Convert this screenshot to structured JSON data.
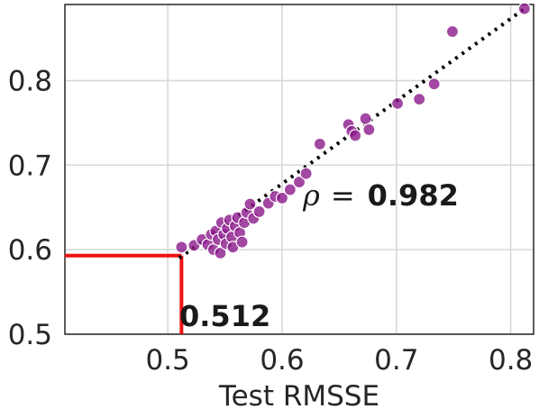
{
  "chart_data": {
    "type": "scatter",
    "xlabel": "Test RMSSE",
    "ylabel": "",
    "xlim": [
      0.41,
      0.82
    ],
    "ylim": [
      0.5,
      0.89
    ],
    "xticks": [
      "0.5",
      "0.6",
      "0.7",
      "0.8"
    ],
    "yticks": [
      "0.5",
      "0.6",
      "0.7",
      "0.8"
    ],
    "grid": true,
    "point_color": "#8b1a8b",
    "trend_line": {
      "style": "dotted",
      "color": "#000000",
      "x": [
        0.51,
        0.812
      ],
      "y": [
        0.59,
        0.885
      ]
    },
    "marker_line": {
      "color": "#ee1111",
      "x": 0.512,
      "y": 0.593
    },
    "annotations": {
      "rho_symbol": "ρ",
      "rho_equals": "=",
      "rho_value": "0.982",
      "min_label": "0.512"
    },
    "points": [
      {
        "x": 0.512,
        "y": 0.603
      },
      {
        "x": 0.523,
        "y": 0.605
      },
      {
        "x": 0.53,
        "y": 0.612
      },
      {
        "x": 0.535,
        "y": 0.606
      },
      {
        "x": 0.538,
        "y": 0.618
      },
      {
        "x": 0.54,
        "y": 0.6
      },
      {
        "x": 0.542,
        "y": 0.622
      },
      {
        "x": 0.544,
        "y": 0.612
      },
      {
        "x": 0.546,
        "y": 0.596
      },
      {
        "x": 0.547,
        "y": 0.632
      },
      {
        "x": 0.549,
        "y": 0.618
      },
      {
        "x": 0.551,
        "y": 0.607
      },
      {
        "x": 0.552,
        "y": 0.625
      },
      {
        "x": 0.554,
        "y": 0.635
      },
      {
        "x": 0.556,
        "y": 0.615
      },
      {
        "x": 0.557,
        "y": 0.603
      },
      {
        "x": 0.559,
        "y": 0.628
      },
      {
        "x": 0.561,
        "y": 0.638
      },
      {
        "x": 0.563,
        "y": 0.62
      },
      {
        "x": 0.565,
        "y": 0.609
      },
      {
        "x": 0.567,
        "y": 0.632
      },
      {
        "x": 0.569,
        "y": 0.644
      },
      {
        "x": 0.572,
        "y": 0.654
      },
      {
        "x": 0.575,
        "y": 0.637
      },
      {
        "x": 0.58,
        "y": 0.645
      },
      {
        "x": 0.588,
        "y": 0.655
      },
      {
        "x": 0.594,
        "y": 0.663
      },
      {
        "x": 0.6,
        "y": 0.661
      },
      {
        "x": 0.607,
        "y": 0.671
      },
      {
        "x": 0.615,
        "y": 0.68
      },
      {
        "x": 0.621,
        "y": 0.69
      },
      {
        "x": 0.633,
        "y": 0.725
      },
      {
        "x": 0.658,
        "y": 0.748
      },
      {
        "x": 0.661,
        "y": 0.74
      },
      {
        "x": 0.664,
        "y": 0.735
      },
      {
        "x": 0.673,
        "y": 0.755
      },
      {
        "x": 0.676,
        "y": 0.742
      },
      {
        "x": 0.701,
        "y": 0.773
      },
      {
        "x": 0.72,
        "y": 0.778
      },
      {
        "x": 0.733,
        "y": 0.796
      },
      {
        "x": 0.749,
        "y": 0.858
      },
      {
        "x": 0.812,
        "y": 0.885
      }
    ]
  }
}
